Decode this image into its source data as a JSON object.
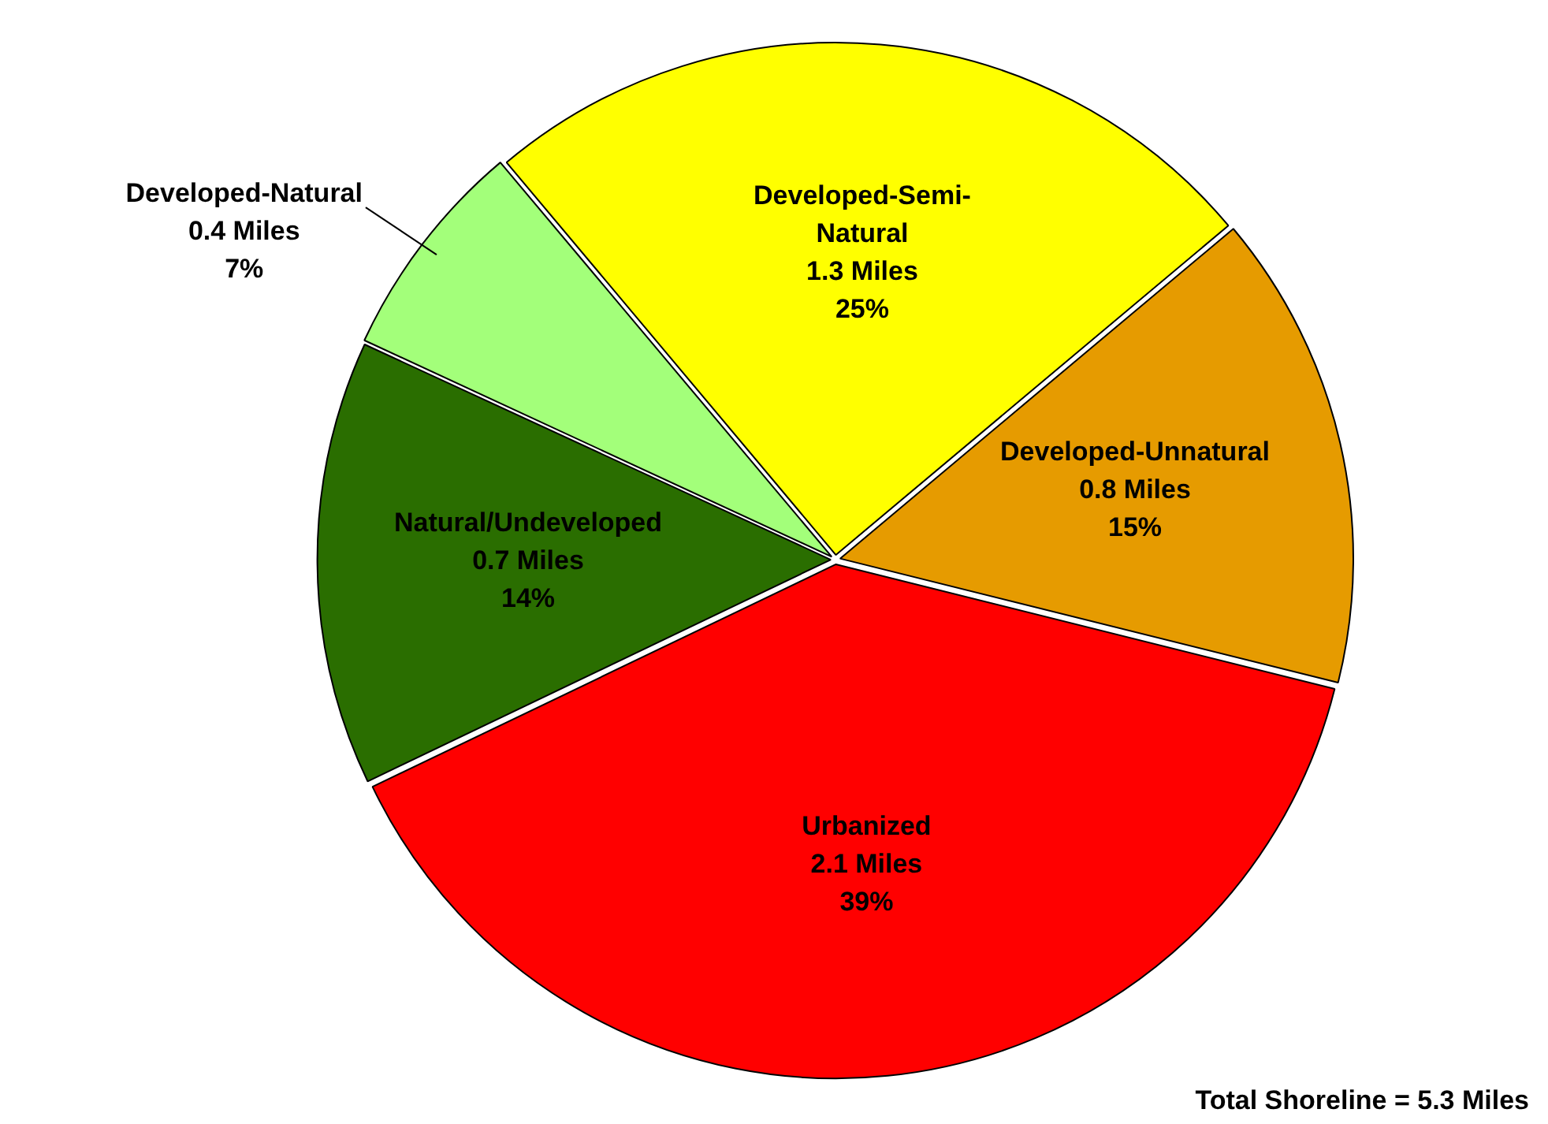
{
  "chart_data": {
    "type": "pie",
    "categories": [
      "Developed-Semi-Natural",
      "Developed-Unnatural",
      "Urbanized",
      "Natural/Undeveloped",
      "Developed-Natural"
    ],
    "values": [
      25,
      15,
      39,
      14,
      7
    ],
    "value_labels": [
      "1.3 Miles\n25%",
      "0.8 Miles\n15%",
      "2.1 Miles\n39%",
      "0.7 Miles\n14%",
      "0.4 Miles\n7%"
    ],
    "colors": [
      "#ffff00",
      "#e69b00",
      "#ff0000",
      "#2a6e00",
      "#a3ff7a"
    ],
    "annotations": [
      "Total Shoreline = 5.3 Miles"
    ],
    "legend": false
  }
}
